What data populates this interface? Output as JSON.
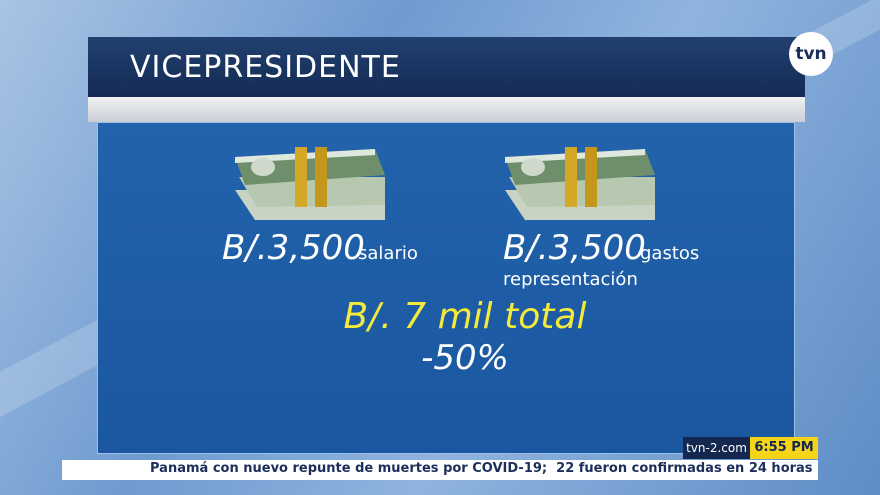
{
  "header": {
    "title": "VICEPRESIDENTE",
    "logo": "tvn"
  },
  "items": [
    {
      "amount": "B/.3,500",
      "label": "salario"
    },
    {
      "amount": "B/.3,500",
      "label": "gastos",
      "label_line2": "representación"
    }
  ],
  "total": "B/. 7 mil total",
  "change": "-50%",
  "ticker": {
    "site": "tvn-2.com",
    "time": "6:55 PM",
    "text": "Panamá con nuevo repunte de muertes por COVID-19;  22 fueron confirmadas en 24 horas"
  }
}
